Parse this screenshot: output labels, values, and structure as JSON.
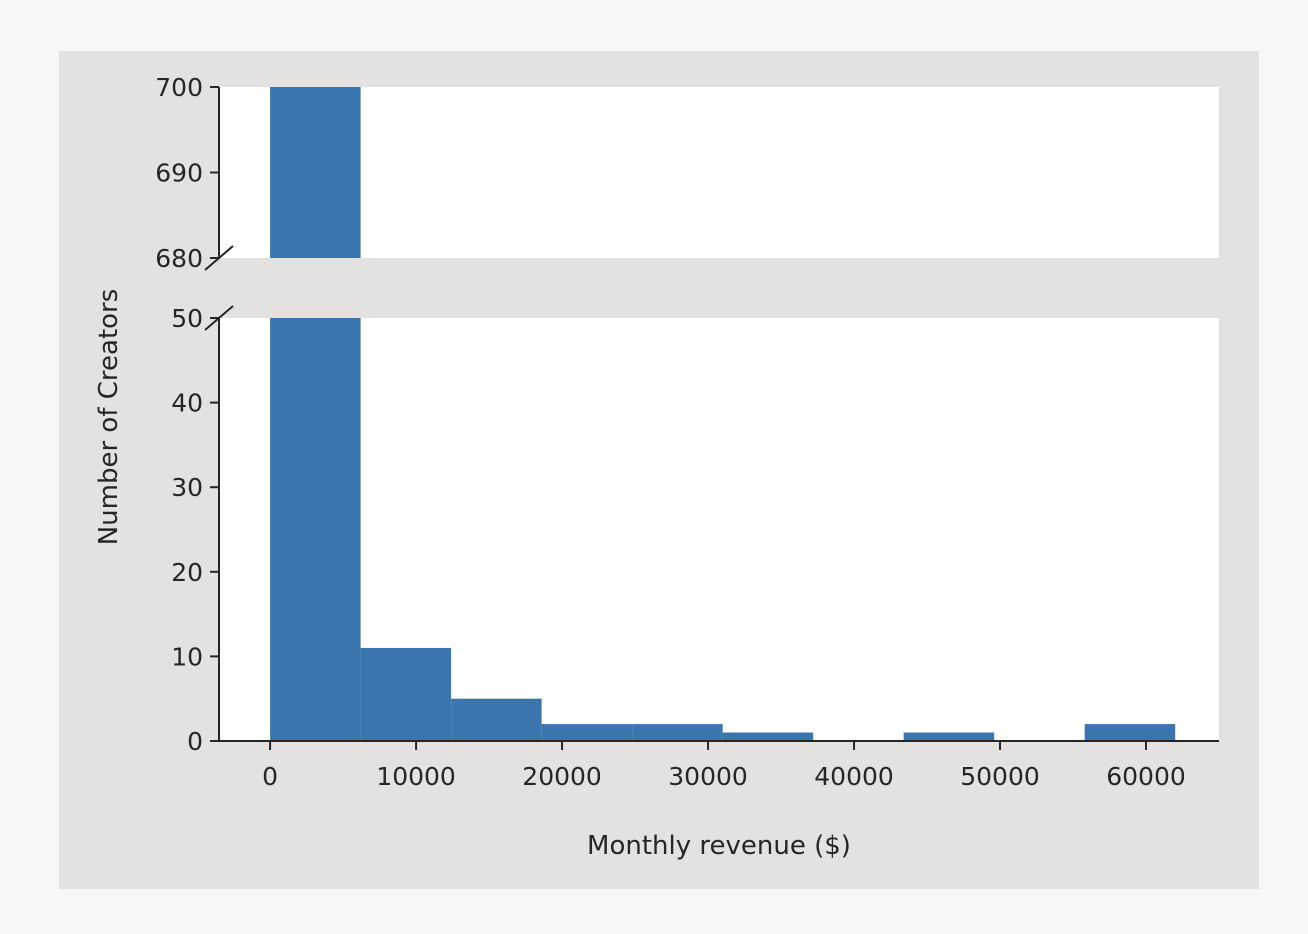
{
  "chart_data": {
    "type": "bar",
    "chart_kind": "histogram",
    "broken_y_axis": true,
    "grid": false,
    "legend": "none",
    "xlabel": "Monthly revenue ($)",
    "ylabel": "Number of Creators",
    "xlim": [
      -3500,
      65000
    ],
    "x_ticks": [
      0,
      10000,
      20000,
      30000,
      40000,
      50000,
      60000
    ],
    "bin_edges": [
      0,
      6200,
      12400,
      18600,
      24800,
      31000,
      37200,
      43400,
      49600,
      55800,
      62000
    ],
    "counts": [
      701,
      11,
      5,
      2,
      2,
      1,
      0,
      1,
      0,
      2
    ],
    "upper_panel": {
      "ylim": [
        680,
        700
      ],
      "y_ticks": [
        680,
        690,
        700
      ]
    },
    "lower_panel": {
      "ylim": [
        0,
        50
      ],
      "y_ticks": [
        0,
        10,
        20,
        30,
        40,
        50
      ]
    },
    "bar_color": "#3a75ad"
  },
  "colors": {
    "figure_bg": "#e3e2e0",
    "axes_bg": "#ffffff",
    "axis_line": "#262626"
  }
}
